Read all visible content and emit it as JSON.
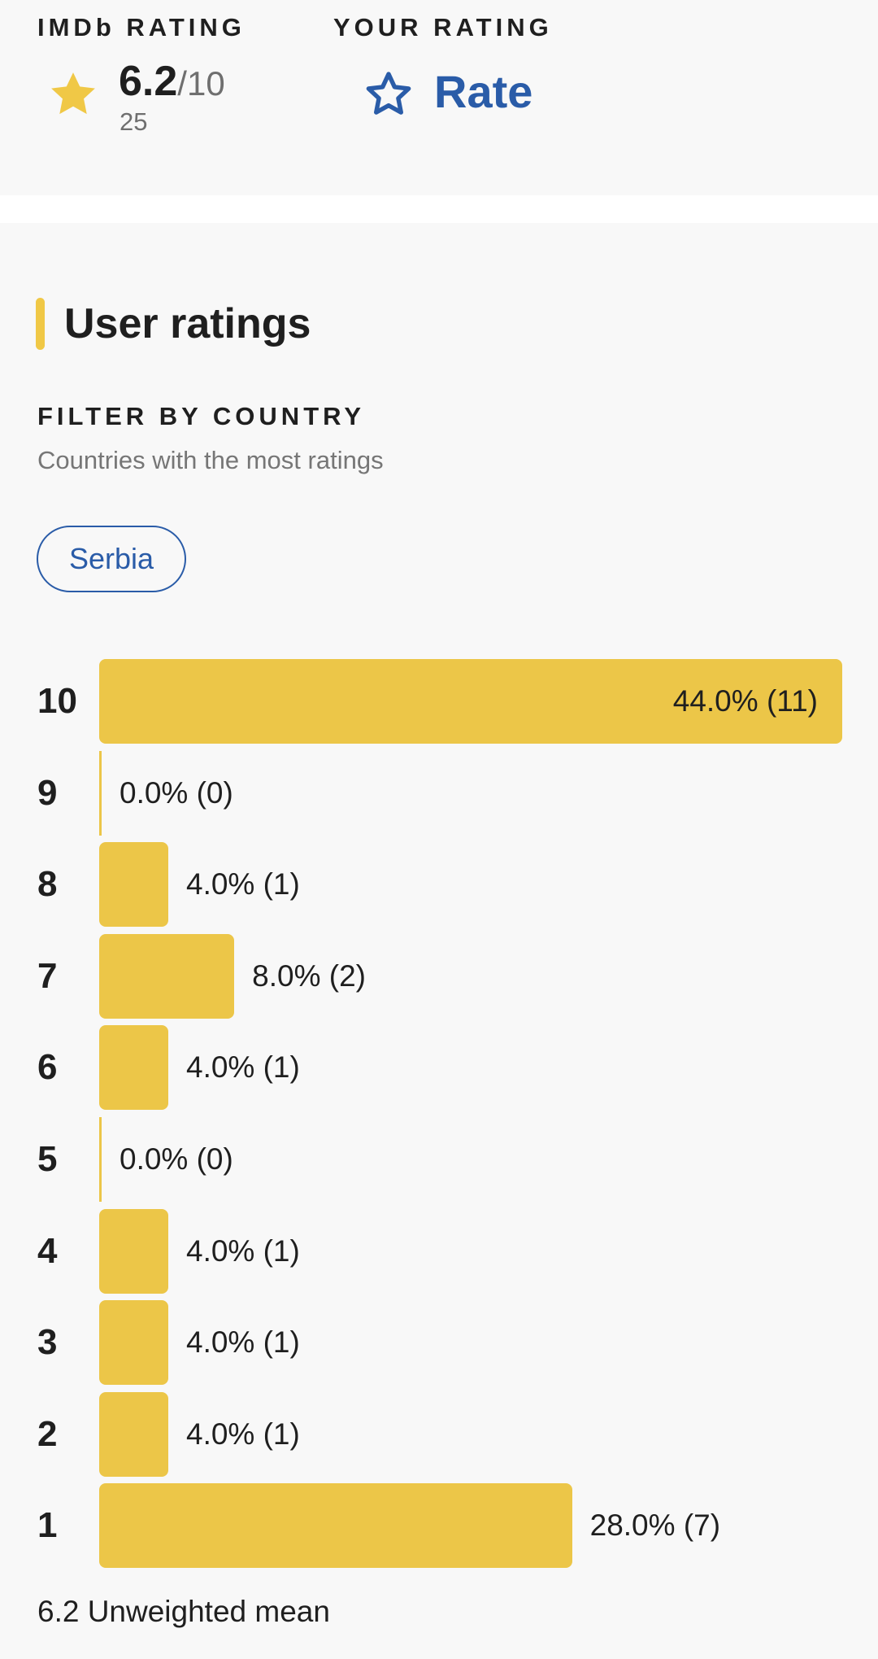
{
  "imdb_rating": {
    "label": "IMDb RATING",
    "score": "6.2",
    "max": "/10",
    "votes": "25",
    "icon": "star-filled-icon",
    "icon_color": "#f0c846"
  },
  "your_rating": {
    "label": "YOUR RATING",
    "action_label": "Rate",
    "icon": "star-outline-icon",
    "accent_color": "#2a5ca8"
  },
  "user_ratings": {
    "title": "User ratings",
    "filter_heading": "FILTER BY COUNTRY",
    "filter_subtitle": "Countries with the most ratings",
    "country_chip": "Serbia",
    "mean_text": "6.2 Unweighted mean"
  },
  "chart_data": {
    "type": "bar",
    "orientation": "horizontal",
    "categories": [
      "10",
      "9",
      "8",
      "7",
      "6",
      "5",
      "4",
      "3",
      "2",
      "1"
    ],
    "values": [
      44.0,
      0.0,
      4.0,
      8.0,
      4.0,
      0.0,
      4.0,
      4.0,
      4.0,
      28.0
    ],
    "counts": [
      11,
      0,
      1,
      2,
      1,
      0,
      1,
      1,
      1,
      7
    ],
    "value_labels": [
      "44.0% (11)",
      "0.0% (0)",
      "4.0% (1)",
      "8.0% (2)",
      "4.0% (1)",
      "0.0% (0)",
      "4.0% (1)",
      "4.0% (1)",
      "4.0% (1)",
      "28.0% (7)"
    ],
    "bar_color": "#ecc648",
    "xlim": [
      0,
      44.0
    ]
  }
}
